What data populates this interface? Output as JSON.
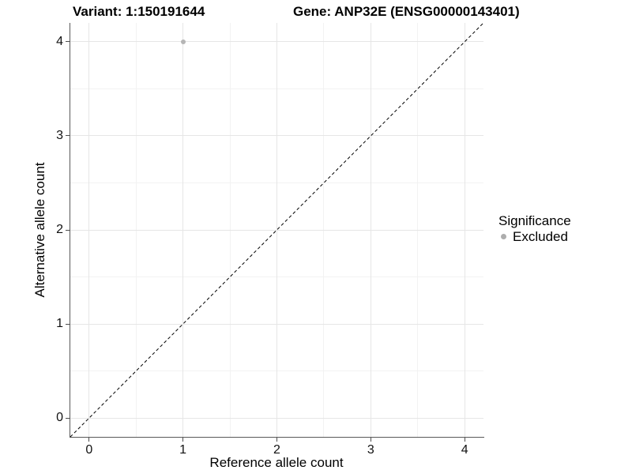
{
  "chart_data": {
    "type": "scatter",
    "title_variant": "Variant: 1:150191644",
    "title_gene": "Gene: ANP32E (ENSG00000143401)",
    "xlabel": "Reference allele count",
    "ylabel": "Alternative allele count",
    "xlim": [
      -0.2,
      4.2
    ],
    "ylim": [
      -0.2,
      4.2
    ],
    "x_ticks": [
      0,
      1,
      2,
      3,
      4
    ],
    "y_ticks": [
      0,
      1,
      2,
      3,
      4
    ],
    "minor_grid_step": 0.5,
    "grid": "major+minor",
    "points": [
      {
        "x": 1,
        "y": 4,
        "significance": "Excluded"
      }
    ],
    "reference_line": {
      "style": "dashed",
      "slope": 1,
      "intercept": 0,
      "color": "#000000"
    },
    "legend": {
      "title": "Significance",
      "position": "right",
      "entries": [
        {
          "label": "Excluded",
          "color": "#adadad"
        }
      ]
    },
    "colors": {
      "point": "#b5b5b5",
      "major_grid": "#e6e6e6",
      "minor_grid": "#f2f2f2",
      "axis_line": "#595959",
      "tick_mark": "#4d4d4d",
      "text": "#000000",
      "background": "#ffffff"
    }
  }
}
